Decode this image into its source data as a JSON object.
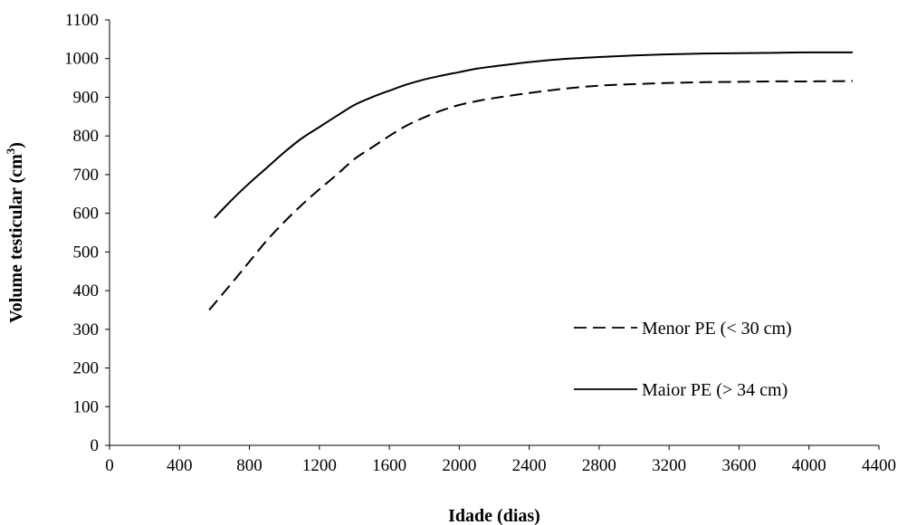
{
  "chart_data": {
    "type": "line",
    "xlabel": "Idade (dias)",
    "ylabel_main": "Volume testicular (cm",
    "ylabel_sup": "3",
    "ylabel_close": ")",
    "xlim": [
      0,
      4400
    ],
    "ylim": [
      0,
      1100
    ],
    "x_ticks": [
      0,
      400,
      800,
      1200,
      1600,
      2000,
      2400,
      2800,
      3200,
      3600,
      4000,
      4400
    ],
    "y_ticks": [
      0,
      100,
      200,
      300,
      400,
      500,
      600,
      700,
      800,
      900,
      1000,
      1100
    ],
    "x_tick_labels": [
      "0",
      "400",
      "800",
      "1200",
      "1600",
      "2000",
      "2400",
      "2800",
      "3200",
      "3600",
      "4000",
      "4400"
    ],
    "y_tick_labels": [
      "0",
      "100",
      "200",
      "300",
      "400",
      "500",
      "600",
      "700",
      "800",
      "900",
      "1000",
      "1100"
    ],
    "grid": false,
    "legend_position": "right",
    "series": [
      {
        "name": "Menor PE (< 30 cm)",
        "style": "dashed",
        "color": "#000000",
        "x": [
          570,
          700,
          800,
          900,
          1000,
          1100,
          1200,
          1300,
          1400,
          1500,
          1600,
          1700,
          1800,
          1900,
          2000,
          2100,
          2200,
          2400,
          2600,
          2800,
          3000,
          3200,
          3400,
          3600,
          3800,
          4000,
          4250
        ],
        "y": [
          350,
          420,
          475,
          530,
          578,
          622,
          662,
          700,
          740,
          770,
          800,
          827,
          848,
          866,
          880,
          890,
          898,
          911,
          922,
          930,
          934,
          937,
          939,
          940,
          941,
          941,
          942
        ]
      },
      {
        "name": "Maior PE (> 34 cm)",
        "style": "solid",
        "color": "#000000",
        "x": [
          600,
          700,
          800,
          900,
          1000,
          1100,
          1200,
          1300,
          1400,
          1500,
          1600,
          1700,
          1800,
          1900,
          2000,
          2100,
          2200,
          2400,
          2600,
          2800,
          3000,
          3200,
          3400,
          3600,
          3800,
          4000,
          4250
        ],
        "y": [
          588,
          635,
          678,
          718,
          758,
          794,
          823,
          852,
          880,
          900,
          917,
          933,
          946,
          956,
          965,
          974,
          980,
          991,
          999,
          1004,
          1008,
          1011,
          1013,
          1014,
          1015,
          1016,
          1016
        ]
      }
    ]
  }
}
